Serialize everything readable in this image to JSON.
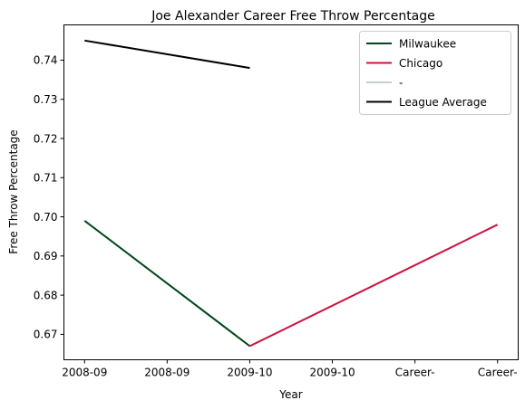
{
  "chart_data": {
    "type": "line",
    "title": "Joe Alexander Career Free Throw Percentage",
    "xlabel": "Year",
    "ylabel": "Free Throw Percentage",
    "x_positions": [
      0,
      1,
      2,
      3,
      4,
      5
    ],
    "x_tick_labels": [
      "2008-09",
      "2008-09",
      "2009-10",
      "2009-10",
      "Career-",
      "Career-"
    ],
    "ylim": [
      0.6635,
      0.749
    ],
    "y_ticks": [
      0.67,
      0.68,
      0.69,
      0.7,
      0.71,
      0.72,
      0.73,
      0.74
    ],
    "y_tick_labels": [
      "0.67",
      "0.68",
      "0.69",
      "0.70",
      "0.71",
      "0.72",
      "0.73",
      "0.74"
    ],
    "grid": false,
    "legend_position": "top-right",
    "series": [
      {
        "name": "Milwaukee",
        "color": "#00471b",
        "points": [
          [
            0,
            0.699
          ],
          [
            2,
            0.667
          ]
        ]
      },
      {
        "name": "Chicago",
        "color": "#ce1141",
        "points": [
          [
            2,
            0.667
          ],
          [
            5,
            0.698
          ]
        ]
      },
      {
        "name": "-",
        "color": "#c4ced4",
        "points": []
      },
      {
        "name": "League Average",
        "color": "#000000",
        "points": [
          [
            0,
            0.745
          ],
          [
            2,
            0.738
          ]
        ]
      }
    ]
  }
}
